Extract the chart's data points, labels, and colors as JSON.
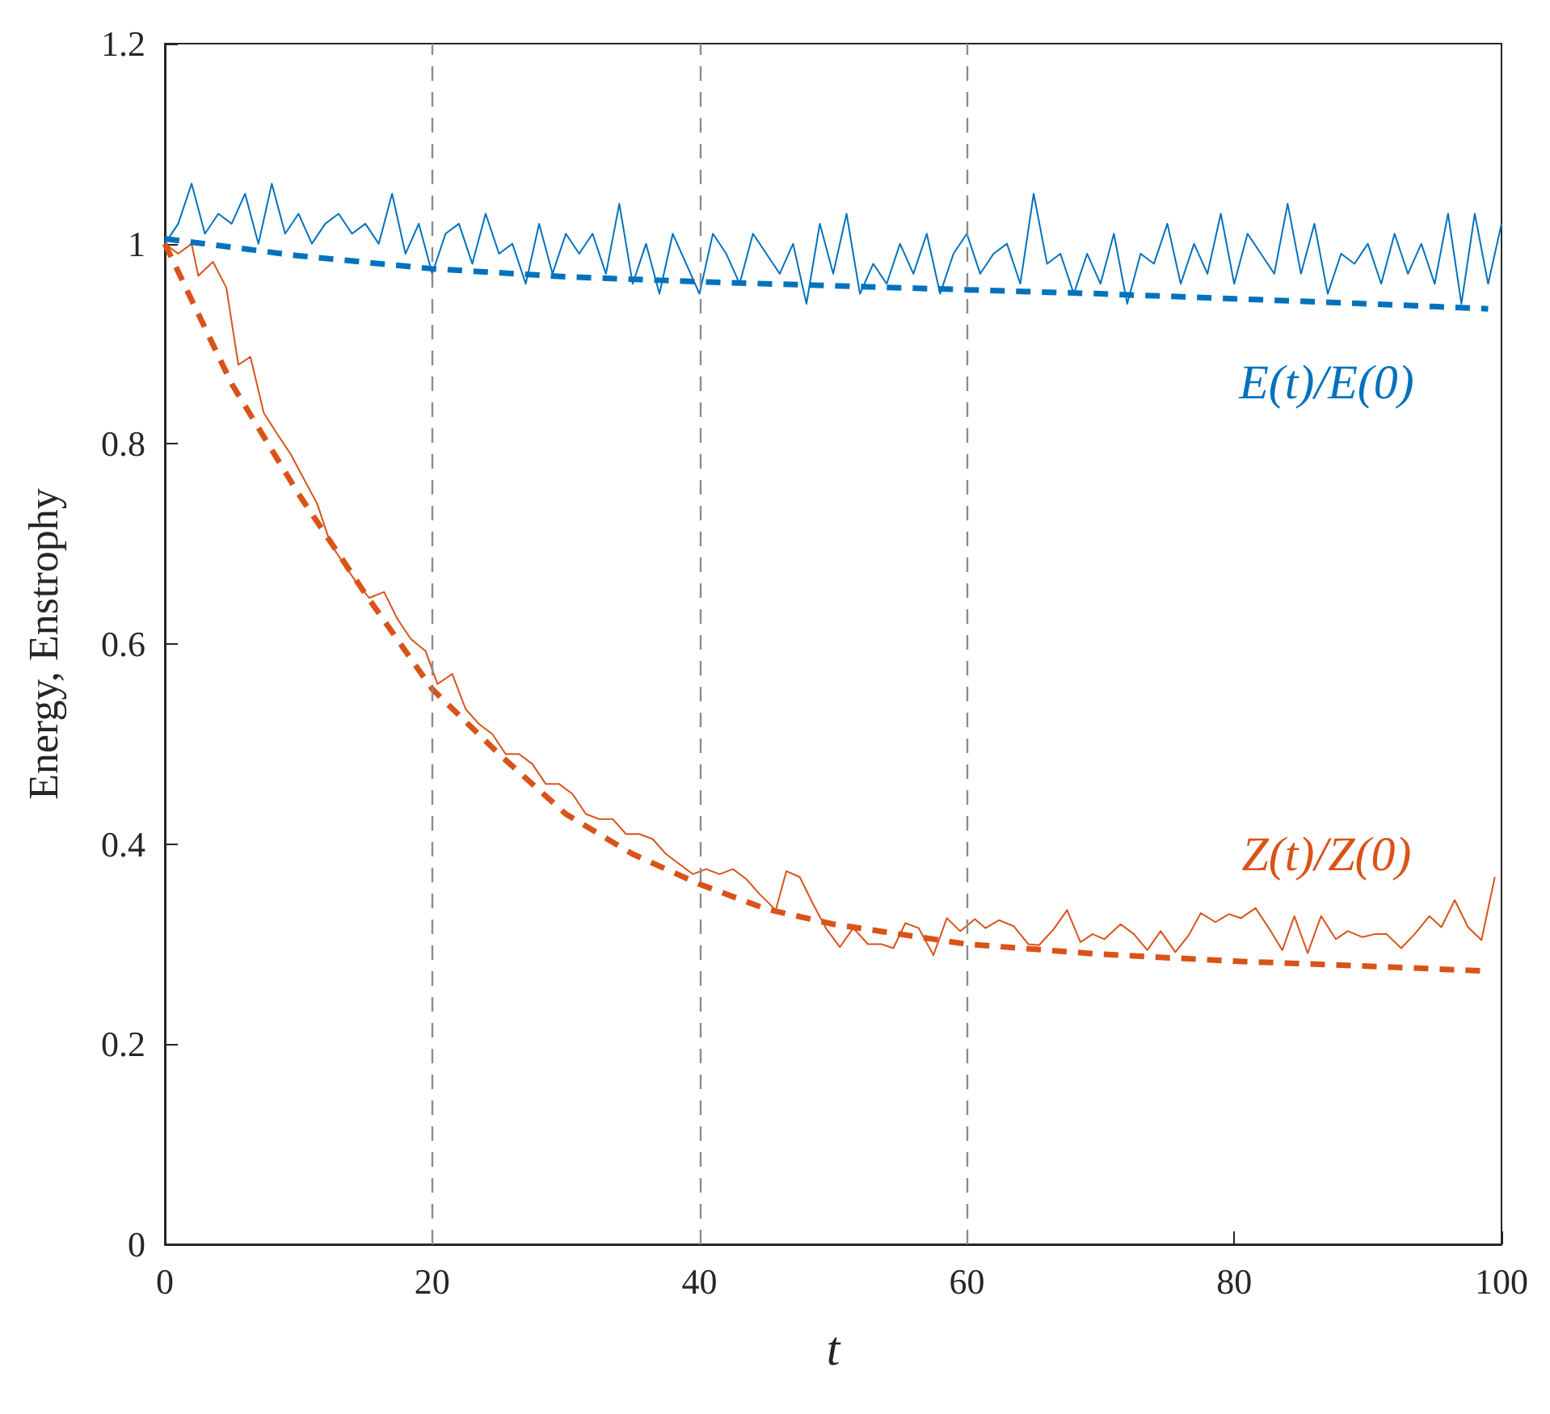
{
  "chart_data": {
    "type": "line",
    "xlabel": "t",
    "ylabel": "Energy, Enstrophy",
    "xlim": [
      0,
      100
    ],
    "ylim": [
      0,
      1.2
    ],
    "xticks": [
      0,
      20,
      40,
      60,
      80,
      100
    ],
    "yticks": [
      0,
      0.2,
      0.4,
      0.6,
      0.8,
      1,
      1.2
    ],
    "grid": false,
    "legend": false,
    "marker": "none",
    "series": [
      {
        "color": "#0072bd",
        "x": [
          0,
          1,
          2,
          3,
          4,
          5,
          6,
          7,
          8,
          9,
          10,
          11,
          12,
          13,
          14,
          15,
          16,
          17,
          18,
          19,
          20,
          21,
          22,
          23,
          24,
          25,
          26,
          27,
          28,
          29,
          30,
          31,
          32,
          33,
          34,
          35,
          36,
          37,
          38,
          39,
          40,
          41,
          42,
          43,
          44,
          45,
          46,
          47,
          48,
          49,
          50,
          51,
          52,
          53,
          54,
          55,
          56,
          57,
          58,
          59,
          60,
          61,
          62,
          63,
          64,
          65,
          66,
          67,
          68,
          69,
          70,
          71,
          72,
          73,
          74,
          75,
          76,
          77,
          78,
          79,
          80,
          81,
          82,
          83,
          84,
          85,
          86,
          87,
          88,
          89,
          90,
          91,
          92,
          93,
          94,
          95,
          96,
          97,
          98,
          99,
          100
        ],
        "values": [
          1.0,
          1.02,
          1.06,
          1.01,
          1.03,
          1.02,
          1.05,
          1.0,
          1.06,
          1.01,
          1.03,
          1.0,
          1.02,
          1.03,
          1.01,
          1.02,
          1.0,
          1.05,
          0.99,
          1.02,
          0.97,
          1.01,
          1.02,
          0.98,
          1.03,
          0.99,
          1.0,
          0.96,
          1.02,
          0.97,
          1.01,
          0.99,
          1.01,
          0.97,
          1.04,
          0.96,
          1.0,
          0.95,
          1.01,
          0.98,
          0.95,
          1.01,
          0.99,
          0.96,
          1.01,
          0.99,
          0.97,
          1.0,
          0.94,
          1.02,
          0.97,
          1.03,
          0.95,
          0.98,
          0.96,
          1.0,
          0.97,
          1.01,
          0.95,
          0.99,
          1.01,
          0.97,
          0.99,
          1.0,
          0.96,
          1.05,
          0.98,
          0.99,
          0.95,
          0.99,
          0.96,
          1.01,
          0.94,
          0.99,
          0.98,
          1.02,
          0.96,
          1.0,
          0.97,
          1.03,
          0.96,
          1.01,
          0.99,
          0.97,
          1.04,
          0.97,
          1.02,
          0.95,
          0.99,
          0.98,
          1.0,
          0.96,
          1.01,
          0.97,
          1.0,
          0.96,
          1.03,
          0.94,
          1.03,
          0.96,
          1.02
        ]
      },
      {
        "name": "E(t)/E(0)",
        "color": "#0072bd",
        "line_style": "dashed",
        "x": [
          0,
          10,
          20,
          30,
          40,
          50,
          60,
          70,
          80,
          90,
          99
        ],
        "values": [
          1.005,
          0.988,
          0.975,
          0.967,
          0.962,
          0.958,
          0.954,
          0.95,
          0.945,
          0.94,
          0.935
        ]
      },
      {
        "color": "#d95319",
        "x": [
          0,
          1,
          2,
          2.5,
          3.6,
          4.6,
          5.5,
          6.4,
          7.4,
          8.4,
          9.4,
          10.4,
          11.4,
          12.4,
          13.4,
          14.4,
          15.3,
          16.4,
          17.4,
          18.4,
          19.5,
          20.4,
          21.5,
          22.5,
          23.5,
          24.5,
          25.5,
          26.5,
          27.5,
          28.5,
          29.5,
          30.5,
          31.5,
          32.5,
          33.5,
          34.5,
          35.5,
          36.5,
          37.5,
          38.5,
          39.5,
          40.5,
          41.5,
          42.5,
          43.5,
          44.5,
          45.7,
          46.5,
          47.5,
          48.5,
          49.5,
          50.5,
          51.5,
          52.6,
          53.6,
          54.5,
          55.4,
          56.4,
          57.5,
          58.5,
          59.5,
          60.6,
          61.4,
          62.4,
          63.5,
          64.6,
          65.4,
          66.5,
          67.5,
          68.5,
          69.4,
          70.3,
          71.5,
          72.5,
          73.5,
          74.5,
          75.6,
          76.6,
          77.5,
          78.6,
          79.6,
          80.5,
          81.6,
          82.6,
          83.6,
          84.5,
          85.5,
          86.5,
          87.6,
          88.5,
          89.6,
          90.5,
          91.4,
          92.5,
          93.5,
          94.6,
          95.5,
          96.5,
          97.5,
          98.5,
          99.5
        ],
        "values": [
          1.0,
          0.99,
          1.0,
          0.968,
          0.982,
          0.956,
          0.879,
          0.887,
          0.831,
          0.81,
          0.79,
          0.765,
          0.74,
          0.7,
          0.68,
          0.66,
          0.646,
          0.652,
          0.625,
          0.605,
          0.593,
          0.56,
          0.57,
          0.535,
          0.52,
          0.51,
          0.49,
          0.49,
          0.48,
          0.46,
          0.46,
          0.45,
          0.43,
          0.425,
          0.425,
          0.41,
          0.41,
          0.405,
          0.39,
          0.38,
          0.37,
          0.375,
          0.37,
          0.375,
          0.365,
          0.35,
          0.334,
          0.373,
          0.367,
          0.34,
          0.315,
          0.297,
          0.316,
          0.3,
          0.3,
          0.296,
          0.321,
          0.316,
          0.289,
          0.326,
          0.313,
          0.325,
          0.316,
          0.324,
          0.318,
          0.3,
          0.299,
          0.315,
          0.334,
          0.302,
          0.31,
          0.305,
          0.32,
          0.31,
          0.294,
          0.313,
          0.292,
          0.309,
          0.331,
          0.322,
          0.33,
          0.326,
          0.336,
          0.316,
          0.294,
          0.328,
          0.291,
          0.328,
          0.305,
          0.313,
          0.307,
          0.31,
          0.31,
          0.296,
          0.31,
          0.328,
          0.317,
          0.344,
          0.317,
          0.304,
          0.367
        ]
      },
      {
        "name": "Z(t)/Z(0)",
        "color": "#d95319",
        "line_style": "dashed",
        "x": [
          0,
          5,
          10,
          15,
          20,
          25,
          30,
          35,
          40,
          45,
          50,
          55,
          60,
          70,
          80,
          90,
          99
        ],
        "values": [
          1.0,
          0.86,
          0.75,
          0.65,
          0.555,
          0.49,
          0.43,
          0.39,
          0.36,
          0.335,
          0.32,
          0.31,
          0.3,
          0.29,
          0.283,
          0.278,
          0.273
        ]
      }
    ],
    "ref_lines": [
      {
        "axis": "x",
        "value": 20,
        "color": "#8c8c8c",
        "line_style": "dashed"
      },
      {
        "axis": "x",
        "value": 40,
        "color": "#8c8c8c",
        "line_style": "dashed"
      },
      {
        "axis": "x",
        "value": 60,
        "color": "#8c8c8c",
        "line_style": "dashed"
      }
    ]
  }
}
